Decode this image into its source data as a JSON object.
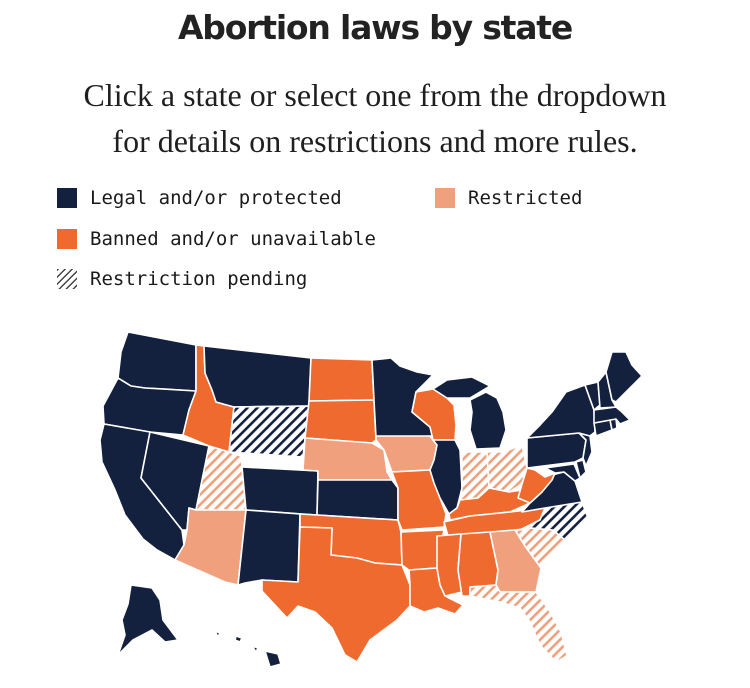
{
  "header": {
    "title": "Abortion laws by state",
    "subtitle_line1": "Click a state or select one from the dropdown",
    "subtitle_line2": "for details on restrictions and more rules."
  },
  "legend": {
    "legal": "Legal and/or protected",
    "restricted": "Restricted",
    "banned": "Banned and/or unavailable",
    "pending": "Restriction pending"
  },
  "colors": {
    "legal": "#13213f",
    "restricted": "#f0a07c",
    "banned": "#ef6a2e",
    "pending_stroke_legal": "#13213f",
    "pending_stroke_restricted": "#f0a07c"
  },
  "states": {
    "WA": "legal",
    "OR": "legal",
    "CA": "legal",
    "NV": "legal",
    "ID": "banned",
    "MT": "legal",
    "WY": "pending-legal",
    "UT": "pending-restricted",
    "AZ": "restricted",
    "CO": "legal",
    "NM": "legal",
    "ND": "banned",
    "SD": "banned",
    "NE": "restricted",
    "KS": "legal",
    "OK": "banned",
    "TX": "banned",
    "MN": "legal",
    "IA": "restricted",
    "MO": "banned",
    "AR": "banned",
    "LA": "banned",
    "WI": "banned",
    "IL": "legal",
    "MI": "legal",
    "IN": "pending-restricted",
    "OH": "pending-restricted",
    "KY": "banned",
    "TN": "banned",
    "MS": "banned",
    "AL": "banned",
    "GA": "restricted",
    "FL": "pending-restricted",
    "SC": "pending-restricted",
    "NC": "pending-legal",
    "VA": "legal",
    "WV": "banned",
    "PA": "legal",
    "NY": "legal",
    "MD": "legal",
    "DE": "legal",
    "NJ": "legal",
    "CT": "legal",
    "RI": "legal",
    "MA": "legal",
    "VT": "legal",
    "NH": "legal",
    "ME": "legal",
    "AK": "legal",
    "HI": "legal"
  }
}
